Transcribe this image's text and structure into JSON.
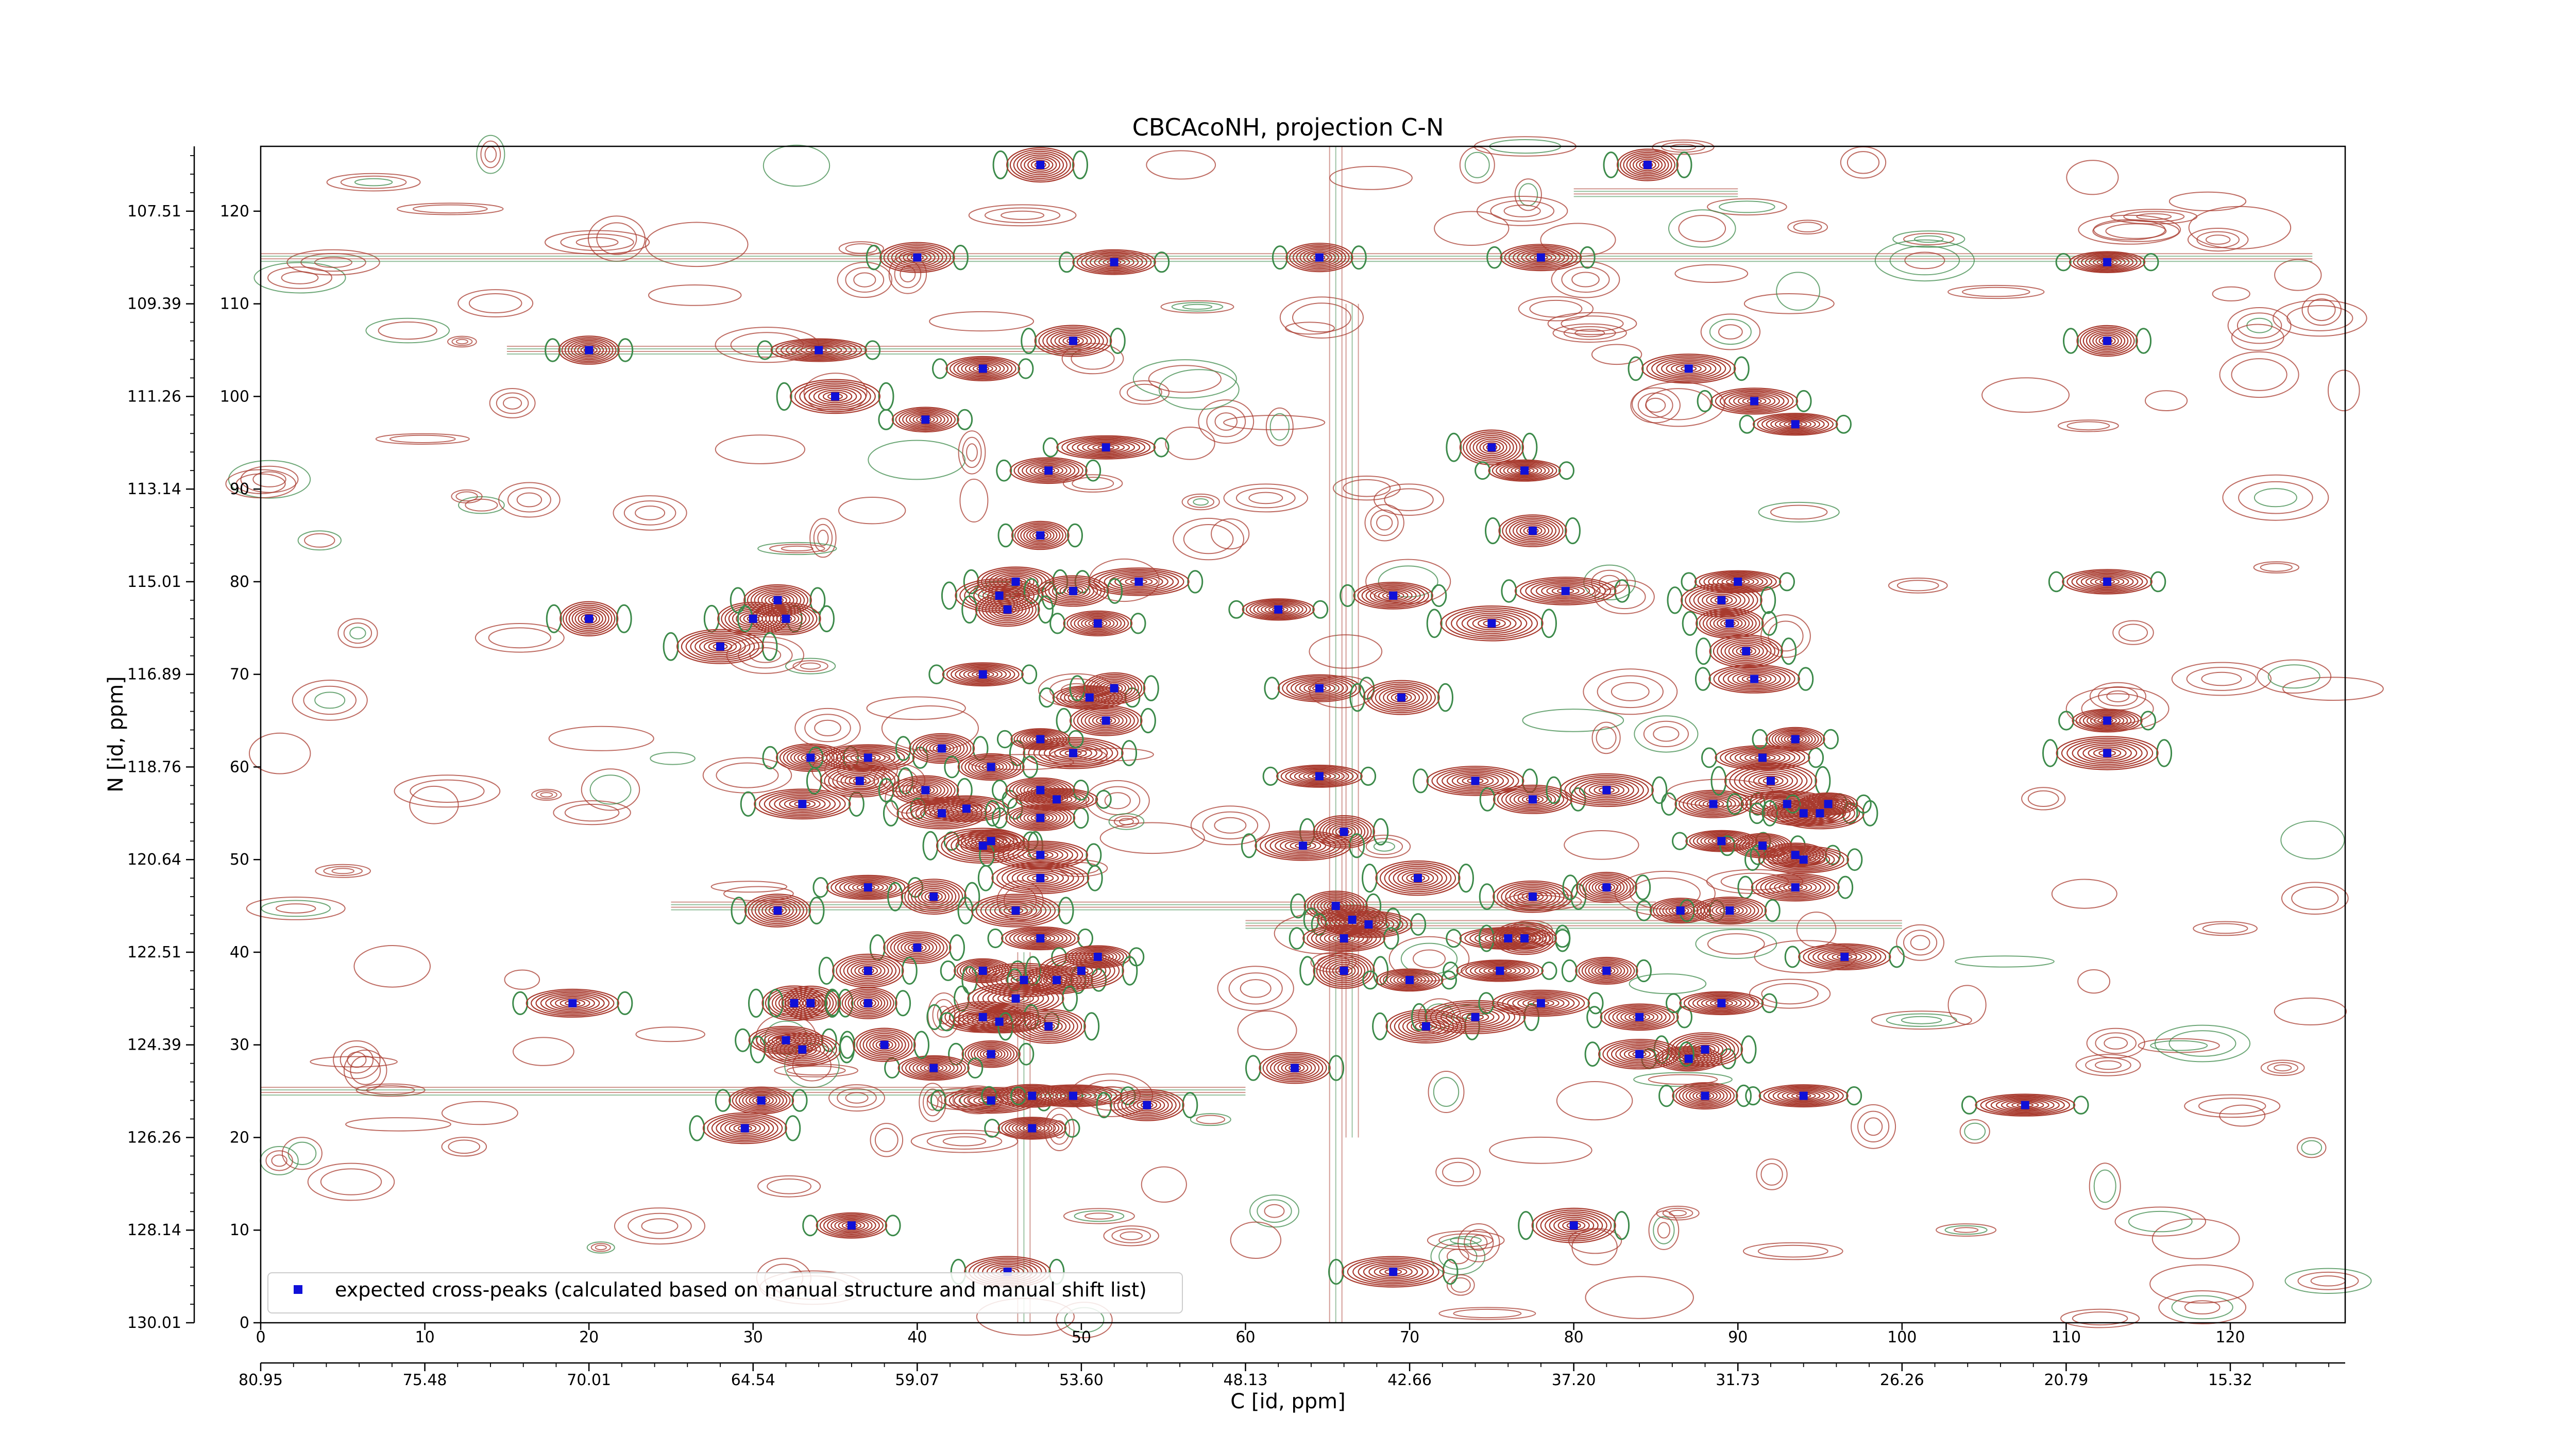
{
  "chart_data": {
    "type": "scatter",
    "title": "CBCAcoNH, projection C-N",
    "xlabel": "C [id, ppm]",
    "ylabel": "N [id, ppm]",
    "xlim": [
      0,
      127
    ],
    "ylim": [
      0,
      127
    ],
    "x_ticks": [
      0,
      10,
      20,
      30,
      40,
      50,
      60,
      70,
      80,
      90,
      100,
      110,
      120
    ],
    "y_ticks": [
      0,
      10,
      20,
      30,
      40,
      50,
      60,
      70,
      80,
      90,
      100,
      110,
      120
    ],
    "x_ppm_ticks": [
      "80.95",
      "75.48",
      "70.01",
      "64.54",
      "59.07",
      "53.60",
      "48.13",
      "42.66",
      "37.20",
      "31.73",
      "26.26",
      "20.79",
      "15.32"
    ],
    "y_ppm_ticks": [
      "130.01",
      "128.14",
      "126.26",
      "124.39",
      "122.51",
      "120.64",
      "118.76",
      "116.89",
      "115.01",
      "113.14",
      "111.26",
      "109.39",
      "107.51"
    ],
    "legend": {
      "label": "expected cross-peaks (calculated based on manual structure and manual shift list)",
      "placement": "lower-left",
      "marker_color": "#1010d8"
    },
    "colors": {
      "positive_contour": "#a83a2e",
      "negative_contour": "#3c8a4a",
      "peak_marker": "#1010d8"
    },
    "series": [
      {
        "name": "expected cross-peaks (calculated based on manual structure and manual shift list)",
        "points": [
          [
            47.5,
            125
          ],
          [
            84.5,
            125
          ],
          [
            40,
            115
          ],
          [
            52,
            114.5
          ],
          [
            64.5,
            115
          ],
          [
            78,
            115
          ],
          [
            112.5,
            114.5
          ],
          [
            20,
            105
          ],
          [
            34,
            105
          ],
          [
            44,
            103
          ],
          [
            49.5,
            106
          ],
          [
            87,
            103
          ],
          [
            112.5,
            106
          ],
          [
            35,
            100
          ],
          [
            40.5,
            97.5
          ],
          [
            91,
            99.5
          ],
          [
            93.5,
            97
          ],
          [
            48,
            92
          ],
          [
            51.5,
            94.5
          ],
          [
            75,
            94.5
          ],
          [
            77,
            92
          ],
          [
            47.5,
            85
          ],
          [
            77.5,
            85.5
          ],
          [
            46,
            80
          ],
          [
            53.5,
            80
          ],
          [
            90,
            80
          ],
          [
            112.5,
            80
          ],
          [
            45,
            78.5
          ],
          [
            49.5,
            79
          ],
          [
            69,
            78.5
          ],
          [
            79.5,
            79
          ],
          [
            89,
            78
          ],
          [
            45.5,
            77
          ],
          [
            62,
            77
          ],
          [
            30,
            76
          ],
          [
            31.5,
            78
          ],
          [
            32,
            76
          ],
          [
            51,
            75.5
          ],
          [
            20,
            76
          ],
          [
            75,
            75.5
          ],
          [
            89.5,
            75.5
          ],
          [
            28,
            73
          ],
          [
            44,
            70
          ],
          [
            50.5,
            67.5
          ],
          [
            52,
            68.5
          ],
          [
            64.5,
            68.5
          ],
          [
            69.5,
            67.5
          ],
          [
            90.5,
            72.5
          ],
          [
            91,
            69.5
          ],
          [
            51.5,
            65
          ],
          [
            49.5,
            61.5
          ],
          [
            47.5,
            63
          ],
          [
            33.5,
            61
          ],
          [
            37,
            61
          ],
          [
            41.5,
            62
          ],
          [
            44.5,
            60
          ],
          [
            64.5,
            59
          ],
          [
            74,
            58.5
          ],
          [
            77.5,
            56.5
          ],
          [
            82,
            57.5
          ],
          [
            91.5,
            61
          ],
          [
            93.5,
            63
          ],
          [
            112.5,
            65
          ],
          [
            112.5,
            61.5
          ],
          [
            33,
            56
          ],
          [
            36.5,
            58.5
          ],
          [
            40.5,
            57.5
          ],
          [
            43,
            55.5
          ],
          [
            41.5,
            55
          ],
          [
            44.5,
            52
          ],
          [
            44,
            51.5
          ],
          [
            47.5,
            54.5
          ],
          [
            48.5,
            56.5
          ],
          [
            47.5,
            57.5
          ],
          [
            66,
            53
          ],
          [
            63.5,
            51.5
          ],
          [
            88.5,
            56
          ],
          [
            92,
            58.5
          ],
          [
            93,
            56
          ],
          [
            94,
            55
          ],
          [
            95,
            55
          ],
          [
            95.5,
            56
          ],
          [
            89,
            52
          ],
          [
            91.5,
            51.5
          ],
          [
            93.5,
            50.5
          ],
          [
            94,
            50
          ],
          [
            47.5,
            50.5
          ],
          [
            47.5,
            48
          ],
          [
            37,
            47
          ],
          [
            41,
            46
          ],
          [
            70.5,
            48
          ],
          [
            77.5,
            46
          ],
          [
            82,
            47
          ],
          [
            93.5,
            47
          ],
          [
            65.5,
            45
          ],
          [
            66.5,
            43.5
          ],
          [
            67.5,
            43
          ],
          [
            66,
            41.5
          ],
          [
            31.5,
            44.5
          ],
          [
            46,
            44.5
          ],
          [
            86.5,
            44.5
          ],
          [
            89.5,
            44.5
          ],
          [
            40,
            40.5
          ],
          [
            47.5,
            41.5
          ],
          [
            51,
            39.5
          ],
          [
            76,
            41.5
          ],
          [
            77,
            41.5
          ],
          [
            96.5,
            39.5
          ],
          [
            37,
            38
          ],
          [
            44,
            38
          ],
          [
            46.5,
            37
          ],
          [
            48.5,
            37
          ],
          [
            50,
            38
          ],
          [
            66,
            38
          ],
          [
            70,
            37
          ],
          [
            75.5,
            38
          ],
          [
            82,
            38
          ],
          [
            19,
            34.5
          ],
          [
            32.5,
            34.5
          ],
          [
            33.5,
            34.5
          ],
          [
            37,
            34.5
          ],
          [
            46,
            35
          ],
          [
            71,
            32
          ],
          [
            74,
            33
          ],
          [
            78,
            34.5
          ],
          [
            84,
            33
          ],
          [
            89,
            34.5
          ],
          [
            32,
            30.5
          ],
          [
            33,
            29.5
          ],
          [
            44,
            33
          ],
          [
            45,
            32.5
          ],
          [
            48,
            32
          ],
          [
            87,
            28.5
          ],
          [
            88,
            29.5
          ],
          [
            84,
            29
          ],
          [
            44.5,
            29
          ],
          [
            41,
            27.5
          ],
          [
            63,
            27.5
          ],
          [
            38,
            30
          ],
          [
            44.5,
            24
          ],
          [
            47,
            24.5
          ],
          [
            49.5,
            24.5
          ],
          [
            54,
            23.5
          ],
          [
            30.5,
            24
          ],
          [
            88,
            24.5
          ],
          [
            94,
            24.5
          ],
          [
            107.5,
            23.5
          ],
          [
            29.5,
            21
          ],
          [
            47,
            21
          ],
          [
            36,
            10.5
          ],
          [
            80,
            10.5
          ],
          [
            45.5,
            5.5
          ],
          [
            69,
            5.5
          ]
        ]
      }
    ]
  }
}
